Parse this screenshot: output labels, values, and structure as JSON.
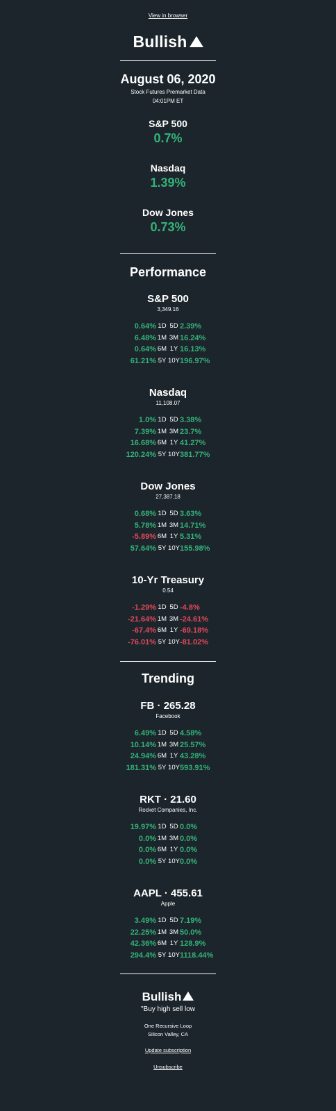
{
  "header": {
    "view_in_browser": "View in browser",
    "logo": "Bullish"
  },
  "summary": {
    "date": "August 06, 2020",
    "subtitle": "Stock Futures Premarket Data",
    "time": "04:01PM ET",
    "indices": [
      {
        "name": "S&P 500",
        "change": "0.7%"
      },
      {
        "name": "Nasdaq",
        "change": "1.39%"
      },
      {
        "name": "Dow Jones",
        "change": "0.73%"
      }
    ]
  },
  "performance": {
    "title": "Performance",
    "items": [
      {
        "name": "S&P 500",
        "value": "3,349.16",
        "rows": [
          [
            "0.64%",
            "1D",
            "5D",
            "2.39%"
          ],
          [
            "6.48%",
            "1M",
            "3M",
            "16.24%"
          ],
          [
            "0.64%",
            "6M",
            "1Y",
            "16.13%"
          ],
          [
            "61.21%",
            "5Y",
            "10Y",
            "196.97%"
          ]
        ]
      },
      {
        "name": "Nasdaq",
        "value": "11,108.07",
        "rows": [
          [
            "1.0%",
            "1D",
            "5D",
            "3.38%"
          ],
          [
            "7.39%",
            "1M",
            "3M",
            "23.7%"
          ],
          [
            "16.68%",
            "6M",
            "1Y",
            "41.27%"
          ],
          [
            "120.24%",
            "5Y",
            "10Y",
            "381.77%"
          ]
        ]
      },
      {
        "name": "Dow Jones",
        "value": "27,387.18",
        "rows": [
          [
            "0.68%",
            "1D",
            "5D",
            "3.63%"
          ],
          [
            "5.78%",
            "1M",
            "3M",
            "14.71%"
          ],
          [
            "-5.89%",
            "6M",
            "1Y",
            "5.31%"
          ],
          [
            "57.64%",
            "5Y",
            "10Y",
            "155.98%"
          ]
        ]
      },
      {
        "name": "10-Yr Treasury",
        "value": "0.54",
        "rows": [
          [
            "-1.29%",
            "1D",
            "5D",
            "-4.8%"
          ],
          [
            "-21.64%",
            "1M",
            "3M",
            "-24.61%"
          ],
          [
            "-67.4%",
            "6M",
            "1Y",
            "-69.18%"
          ],
          [
            "-76.01%",
            "5Y",
            "10Y",
            "-81.02%"
          ]
        ]
      }
    ]
  },
  "trending": {
    "title": "Trending",
    "items": [
      {
        "name": "FB · 265.28",
        "value": "Facebook",
        "rows": [
          [
            "6.49%",
            "1D",
            "5D",
            "4.58%"
          ],
          [
            "10.14%",
            "1M",
            "3M",
            "25.57%"
          ],
          [
            "24.94%",
            "6M",
            "1Y",
            "43.28%"
          ],
          [
            "181.31%",
            "5Y",
            "10Y",
            "593.91%"
          ]
        ]
      },
      {
        "name": "RKT · 21.60",
        "value": "Rocket Companies, Inc.",
        "rows": [
          [
            "19.97%",
            "1D",
            "5D",
            "0.0%"
          ],
          [
            "0.0%",
            "1M",
            "3M",
            "0.0%"
          ],
          [
            "0.0%",
            "6M",
            "1Y",
            "0.0%"
          ],
          [
            "0.0%",
            "5Y",
            "10Y",
            "0.0%"
          ]
        ]
      },
      {
        "name": "AAPL · 455.61",
        "value": "Apple",
        "rows": [
          [
            "3.49%",
            "1D",
            "5D",
            "7.19%"
          ],
          [
            "22.25%",
            "1M",
            "3M",
            "50.0%"
          ],
          [
            "42.36%",
            "6M",
            "1Y",
            "128.9%"
          ],
          [
            "294.4%",
            "5Y",
            "10Y",
            "1118.44%"
          ]
        ]
      }
    ]
  },
  "footer": {
    "logo": "Bullish",
    "quote": "\"Buy high sell low",
    "address_line1": "One Recursive Loop",
    "address_line2": "Silicon Valley, CA",
    "update_link": "Update subscription",
    "unsubscribe_link": "Unsubscribe"
  },
  "colors": {
    "background": "#1c252b",
    "positive": "#34b27a",
    "negative": "#e0485a",
    "text": "#ffffff"
  },
  "icons": {
    "logo_mark": "up-triangle-icon"
  }
}
